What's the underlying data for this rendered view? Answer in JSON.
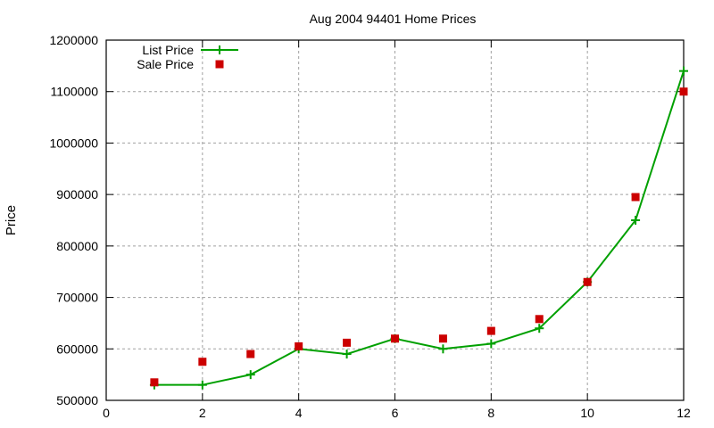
{
  "chart_data": {
    "type": "line",
    "title": "Aug 2004 94401 Home Prices",
    "xlabel": "",
    "ylabel": "Price",
    "xlim": [
      0,
      12
    ],
    "ylim": [
      500000,
      1200000
    ],
    "x_ticks": [
      0,
      2,
      4,
      6,
      8,
      10,
      12
    ],
    "y_ticks": [
      500000,
      600000,
      700000,
      800000,
      900000,
      1000000,
      1100000,
      1200000
    ],
    "grid": true,
    "legend_position": "top-left",
    "x": [
      1,
      2,
      3,
      4,
      5,
      6,
      7,
      8,
      9,
      10,
      11,
      12
    ],
    "series": [
      {
        "name": "List Price",
        "style": "linespoints",
        "marker": "plus",
        "color": "#00a000",
        "values": [
          530000,
          530000,
          550000,
          600000,
          590000,
          620000,
          600000,
          610000,
          640000,
          730000,
          850000,
          1140000
        ]
      },
      {
        "name": "Sale Price",
        "style": "points",
        "marker": "square",
        "color": "#cc0000",
        "values": [
          535000,
          575000,
          590000,
          605000,
          612000,
          620000,
          620000,
          635000,
          658000,
          730000,
          895000,
          1100000
        ]
      }
    ]
  }
}
